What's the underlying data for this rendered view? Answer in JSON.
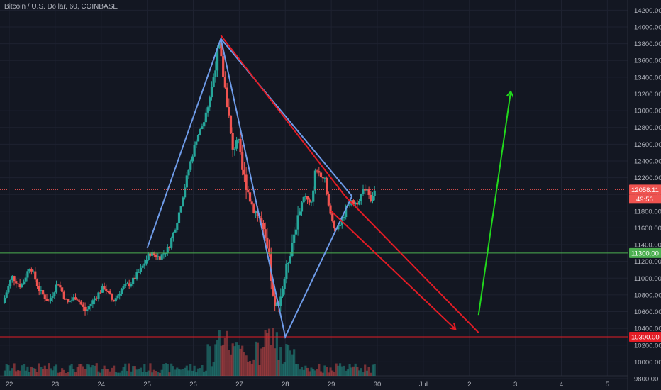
{
  "title": "Bitcoin / U.S. Dollar, 60, COINBASE",
  "colors": {
    "background": "#131722",
    "grid": "#1e2230",
    "bull": "#26a69a",
    "bear": "#ef5350",
    "diamond": "#6e9be8",
    "trend_red": "#e31c25",
    "arrow_green": "#21d91c",
    "support_green": "#4caf50",
    "support_red": "#e31c25"
  },
  "price_tags": {
    "last_price": "12058.11",
    "countdown": "49:56",
    "support_green": "11300.00",
    "support_red": "10300.00"
  },
  "chart_data": {
    "type": "candlestick",
    "title": "Bitcoin / U.S. Dollar, 60, COINBASE",
    "x_ticks": [
      "22",
      "23",
      "24",
      "25",
      "26",
      "27",
      "28",
      "29",
      "30",
      "Jul",
      "2",
      "3",
      "4",
      "5"
    ],
    "y_ticks": [
      9800,
      10000,
      10200,
      10400,
      10600,
      10800,
      11000,
      11200,
      11400,
      11600,
      11800,
      12000,
      12200,
      12400,
      12600,
      12800,
      13000,
      13200,
      13400,
      13600,
      13800,
      14000,
      14200
    ],
    "ylim": [
      9800,
      14250
    ],
    "grid": true,
    "horizontal_levels": [
      {
        "price": 11300,
        "color": "green"
      },
      {
        "price": 10300,
        "color": "red"
      },
      {
        "price": 12058.11,
        "color": "red",
        "style": "dotted",
        "note": "last price"
      }
    ],
    "drawings": {
      "diamond_wedge_days": [
        [
          25.0,
          11360
        ],
        [
          26.6,
          13860
        ],
        [
          28.0,
          10300
        ],
        [
          29.45,
          11980
        ],
        [
          26.6,
          13860
        ]
      ],
      "trendlines": [
        {
          "from": [
            26.6,
            13900
          ],
          "to": [
            29.3,
            11980
          ],
          "color": "red"
        },
        {
          "from": [
            29.0,
            11800
          ],
          "to": [
            31.7,
            10390
          ],
          "color": "red",
          "arrow": true
        },
        {
          "from": [
            29.3,
            11980
          ],
          "to": [
            32.2,
            10350
          ],
          "color": "red"
        },
        {
          "from": [
            32.2,
            10560
          ],
          "to": [
            32.9,
            13230
          ],
          "color": "green",
          "arrow": true
        }
      ]
    },
    "path_points": [
      [
        21.9,
        10700
      ],
      [
        22.1,
        11020
      ],
      [
        22.3,
        10900
      ],
      [
        22.5,
        11150
      ],
      [
        22.7,
        10850
      ],
      [
        22.9,
        10720
      ],
      [
        23.1,
        10950
      ],
      [
        23.3,
        10700
      ],
      [
        23.5,
        10780
      ],
      [
        23.7,
        10600
      ],
      [
        23.9,
        10760
      ],
      [
        24.1,
        10900
      ],
      [
        24.3,
        10720
      ],
      [
        24.5,
        10880
      ],
      [
        24.7,
        10950
      ],
      [
        24.9,
        11100
      ],
      [
        25.1,
        11300
      ],
      [
        25.3,
        11250
      ],
      [
        25.5,
        11350
      ],
      [
        25.7,
        11700
      ],
      [
        25.9,
        12200
      ],
      [
        26.1,
        12650
      ],
      [
        26.3,
        12900
      ],
      [
        26.45,
        13300
      ],
      [
        26.6,
        13800
      ],
      [
        26.8,
        13000
      ],
      [
        26.9,
        12500
      ],
      [
        27.0,
        12700
      ],
      [
        27.1,
        12300
      ],
      [
        27.3,
        11900
      ],
      [
        27.5,
        11700
      ],
      [
        27.7,
        11200
      ],
      [
        27.8,
        10600
      ],
      [
        27.95,
        10800
      ],
      [
        28.1,
        11200
      ],
      [
        28.3,
        11700
      ],
      [
        28.45,
        12000
      ],
      [
        28.6,
        11850
      ],
      [
        28.7,
        12300
      ],
      [
        28.9,
        12200
      ],
      [
        29.0,
        11800
      ],
      [
        29.1,
        11600
      ],
      [
        29.25,
        11650
      ],
      [
        29.4,
        11900
      ],
      [
        29.6,
        11900
      ],
      [
        29.8,
        12100
      ],
      [
        29.9,
        11950
      ],
      [
        30.0,
        12058.11
      ]
    ],
    "volume_profile": "volume bars along the bottom, spikes around 27 and 28"
  }
}
